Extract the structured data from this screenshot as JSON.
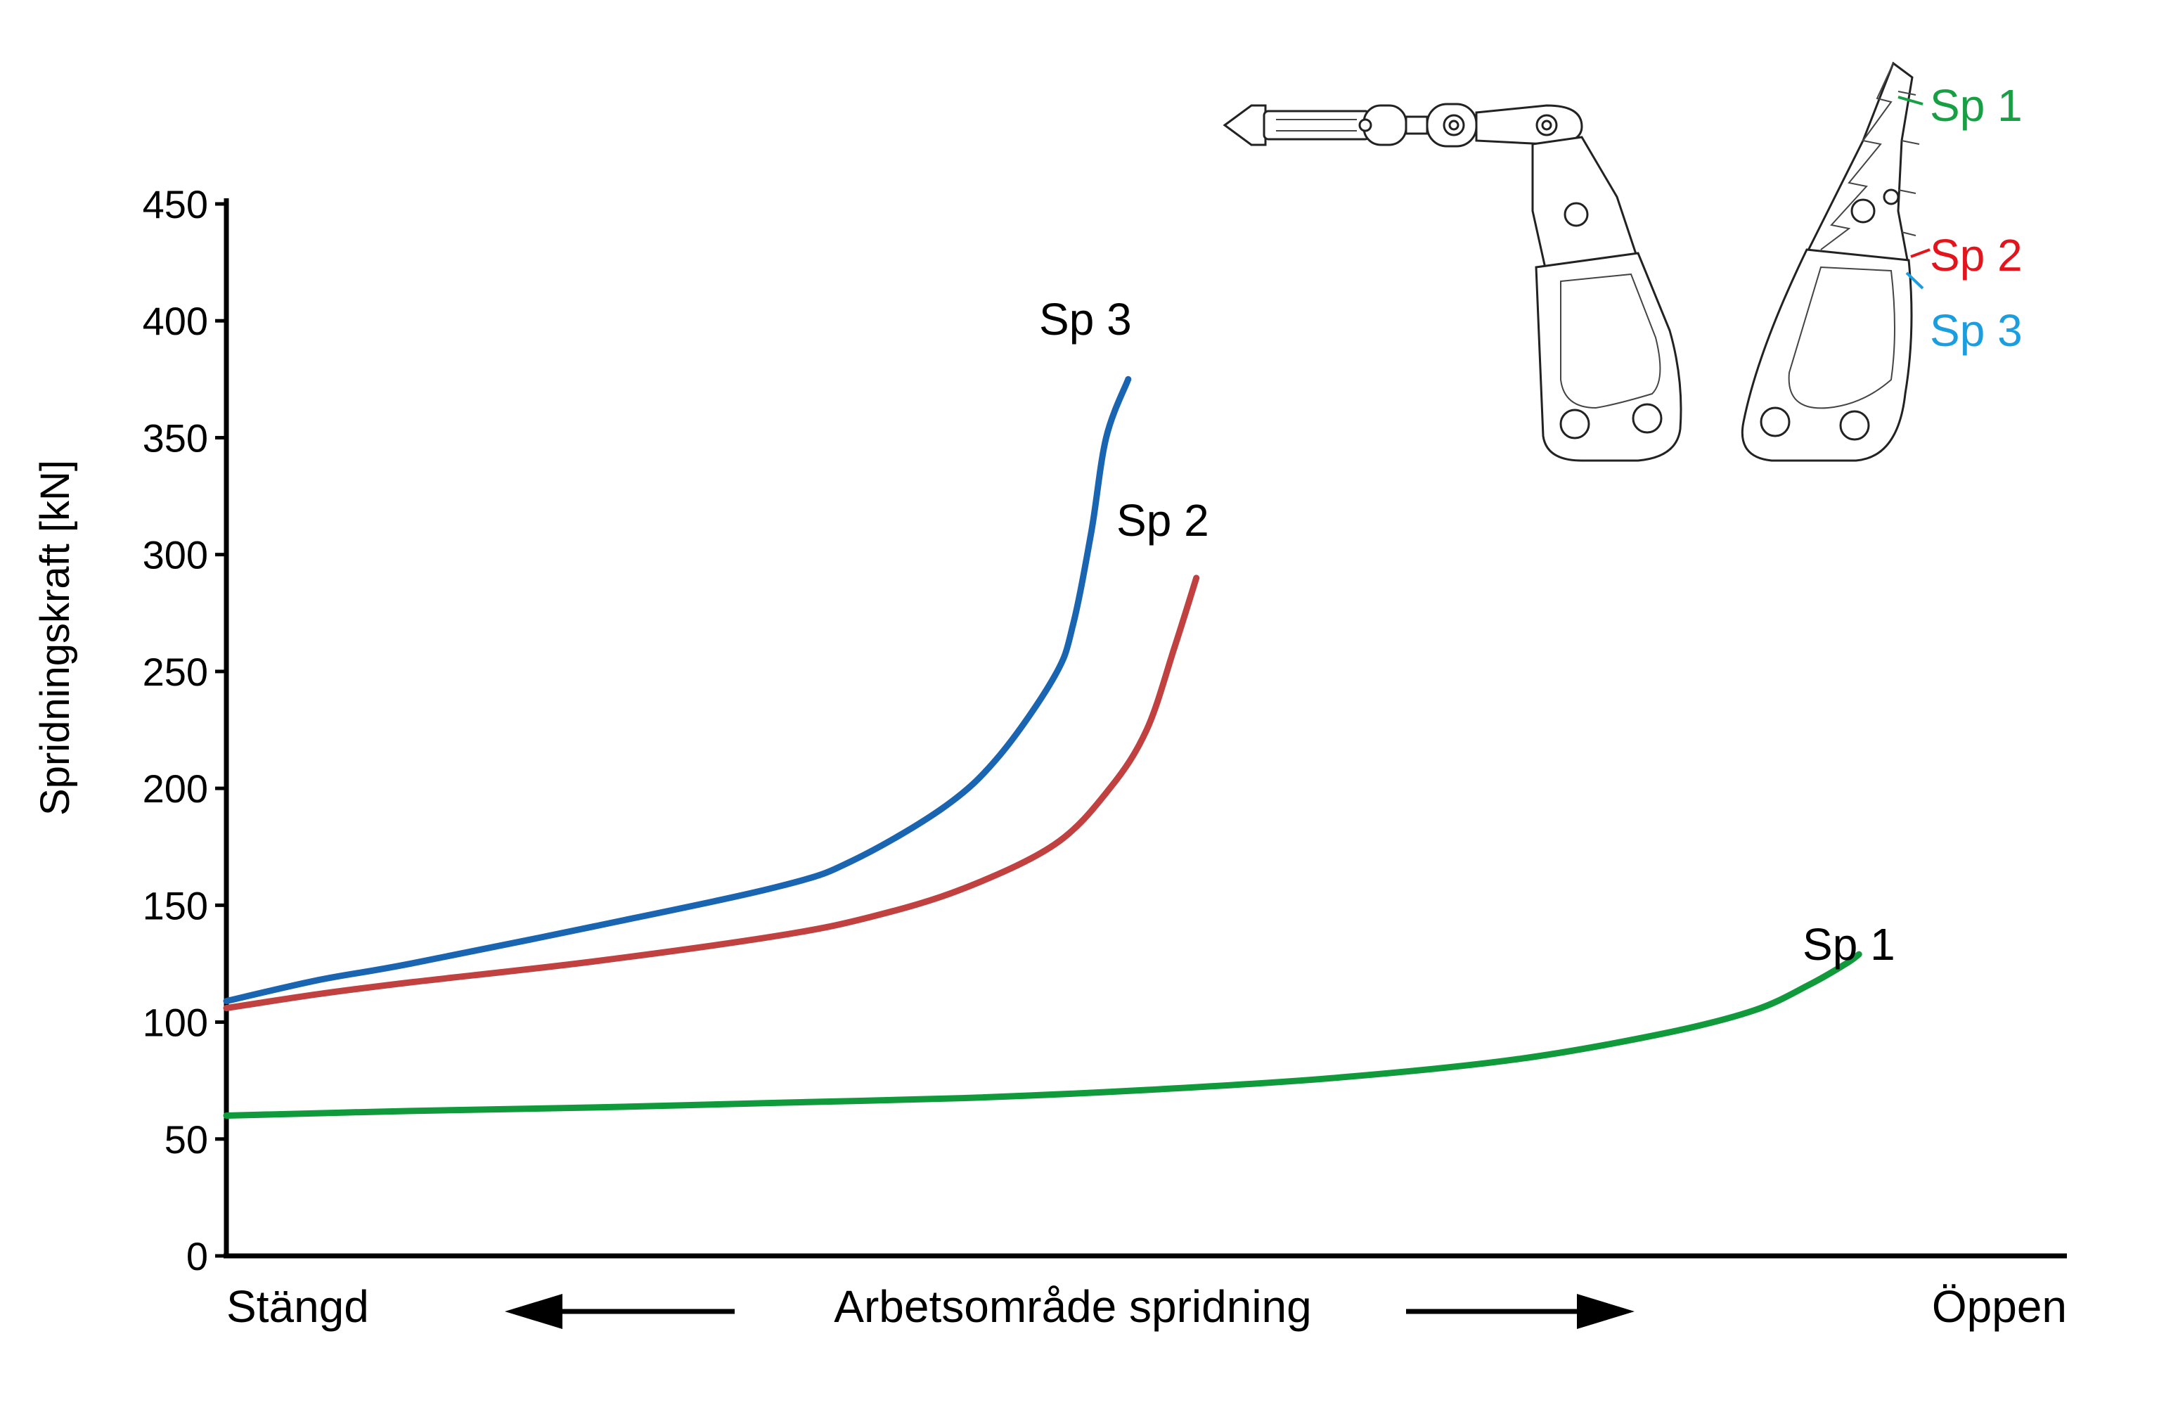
{
  "chart_data": {
    "type": "line",
    "ylabel": "Spridningskraft [kN]",
    "ylim": [
      0,
      450
    ],
    "yticks": [
      0,
      50,
      100,
      150,
      200,
      250,
      300,
      350,
      400,
      450
    ],
    "xlim": [
      0,
      1
    ],
    "x_start_label": "Stängd",
    "x_end_label": "Öppen",
    "x_axis_title": "Arbetsområde spridning",
    "grid": false,
    "series": [
      {
        "name": "Sp 1",
        "color": "#109a3c",
        "points": [
          [
            0,
            60
          ],
          [
            0.1,
            62
          ],
          [
            0.2,
            63.5
          ],
          [
            0.3,
            65.5
          ],
          [
            0.4,
            67.5
          ],
          [
            0.5,
            71
          ],
          [
            0.6,
            76
          ],
          [
            0.7,
            84
          ],
          [
            0.78,
            95
          ],
          [
            0.83,
            105
          ],
          [
            0.86,
            116
          ],
          [
            0.88,
            125
          ],
          [
            0.887,
            129
          ]
        ]
      },
      {
        "name": "Sp 2",
        "color": "#c0413f",
        "points": [
          [
            0,
            106
          ],
          [
            0.05,
            112
          ],
          [
            0.1,
            117
          ],
          [
            0.2,
            126
          ],
          [
            0.3,
            137
          ],
          [
            0.35,
            145
          ],
          [
            0.4,
            157
          ],
          [
            0.45,
            176
          ],
          [
            0.48,
            200
          ],
          [
            0.5,
            225
          ],
          [
            0.515,
            260
          ],
          [
            0.527,
            290
          ]
        ]
      },
      {
        "name": "Sp 3",
        "color": "#1a65b1",
        "points": [
          [
            0,
            109
          ],
          [
            0.05,
            118
          ],
          [
            0.1,
            125
          ],
          [
            0.2,
            141
          ],
          [
            0.3,
            158
          ],
          [
            0.34,
            169
          ],
          [
            0.39,
            192
          ],
          [
            0.42,
            214
          ],
          [
            0.45,
            248
          ],
          [
            0.46,
            270
          ],
          [
            0.47,
            310
          ],
          [
            0.478,
            350
          ],
          [
            0.49,
            375
          ]
        ]
      }
    ],
    "legend": {
      "placement": "top-right",
      "entries": [
        {
          "label": "Sp 1",
          "color": "#17a043"
        },
        {
          "label": "Sp 2",
          "color": "#e3141b"
        },
        {
          "label": "Sp 3",
          "color": "#1a9ee0"
        }
      ]
    }
  }
}
